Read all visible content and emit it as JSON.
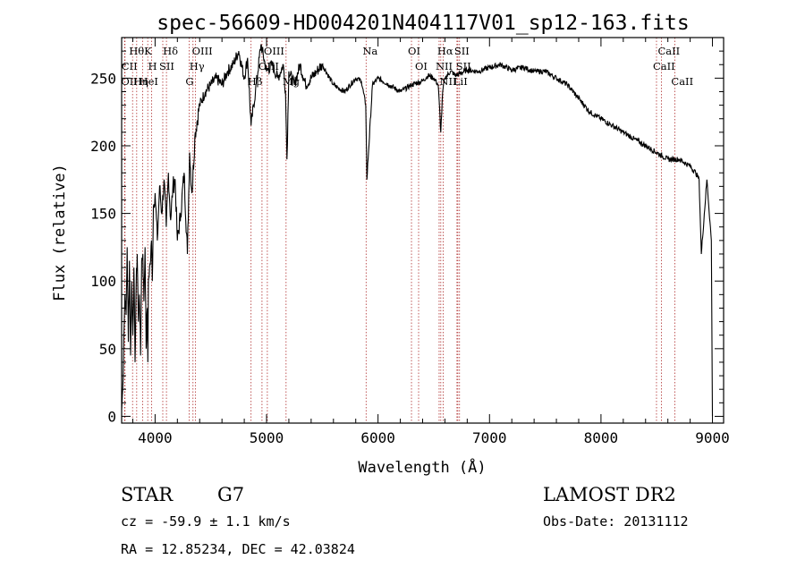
{
  "chart_data": {
    "type": "line",
    "title": "spec-56609-HD004201N404117V01_sp12-163.fits",
    "xlabel": "Wavelength (Å)",
    "ylabel": "Flux (relative)",
    "xlim": [
      3700,
      9100
    ],
    "ylim": [
      -5,
      280
    ],
    "x_ticks": [
      4000,
      5000,
      6000,
      7000,
      8000,
      9000
    ],
    "y_ticks": [
      0,
      50,
      100,
      150,
      200,
      250
    ],
    "grid": false,
    "series": [
      {
        "x": [
          3700,
          3710,
          3720,
          3730,
          3740,
          3750,
          3760,
          3770,
          3780,
          3790,
          3800,
          3810,
          3820,
          3830,
          3840,
          3850,
          3860,
          3870,
          3880,
          3890,
          3900,
          3910,
          3920,
          3930,
          3935,
          3940,
          3950,
          3960,
          3968,
          3975,
          3985,
          4000,
          4020,
          4040,
          4060,
          4080,
          4100,
          4120,
          4140,
          4160,
          4180,
          4200,
          4230,
          4260,
          4290,
          4310,
          4330,
          4360,
          4400,
          4450,
          4500,
          4550,
          4600,
          4650,
          4700,
          4750,
          4800,
          4830,
          4861,
          4900,
          4950,
          5000,
          5050,
          5100,
          5150,
          5170,
          5183,
          5200,
          5250,
          5300,
          5350,
          5400,
          5450,
          5500,
          5600,
          5700,
          5800,
          5850,
          5890,
          5900,
          5950,
          6000,
          6100,
          6200,
          6300,
          6400,
          6450,
          6500,
          6540,
          6563,
          6580,
          6600,
          6650,
          6700,
          6800,
          6900,
          7000,
          7100,
          7200,
          7300,
          7400,
          7500,
          7600,
          7700,
          7800,
          7900,
          8000,
          8100,
          8200,
          8300,
          8400,
          8500,
          8600,
          8700,
          8800,
          8850,
          8880,
          8900,
          8950,
          8990,
          9000
        ],
        "y": [
          5,
          20,
          60,
          90,
          75,
          125,
          55,
          115,
          45,
          100,
          60,
          110,
          40,
          95,
          120,
          70,
          90,
          45,
          115,
          120,
          85,
          125,
          50,
          80,
          40,
          100,
          110,
          115,
          130,
          100,
          155,
          165,
          130,
          170,
          150,
          175,
          140,
          180,
          145,
          170,
          175,
          130,
          150,
          180,
          120,
          195,
          165,
          210,
          230,
          240,
          245,
          250,
          245,
          255,
          260,
          270,
          250,
          265,
          215,
          240,
          275,
          255,
          260,
          250,
          260,
          240,
          190,
          255,
          245,
          260,
          245,
          250,
          255,
          260,
          245,
          240,
          250,
          248,
          230,
          175,
          245,
          250,
          245,
          240,
          245,
          248,
          252,
          250,
          245,
          210,
          240,
          250,
          255,
          252,
          256,
          255,
          258,
          260,
          256,
          258,
          255,
          255,
          250,
          245,
          235,
          225,
          220,
          215,
          210,
          205,
          200,
          195,
          190,
          190,
          185,
          180,
          175,
          120,
          175,
          130,
          0
        ]
      }
    ],
    "spectral_lines": [
      {
        "label": "Hθ",
        "x": 3798
      },
      {
        "label": "CII",
        "x": 3730
      },
      {
        "label": "OII",
        "x": 3727
      },
      {
        "label": "Hη",
        "x": 3835
      },
      {
        "label": "K",
        "x": 3934
      },
      {
        "label": "HeI",
        "x": 3889
      },
      {
        "label": "H",
        "x": 3969
      },
      {
        "label": "Hδ",
        "x": 4102
      },
      {
        "label": "SII",
        "x": 4069
      },
      {
        "label": "OIII",
        "x": 4363
      },
      {
        "label": "Hγ",
        "x": 4340
      },
      {
        "label": "G",
        "x": 4305
      },
      {
        "label": "OIII",
        "x": 5007
      },
      {
        "label": "OIII",
        "x": 4959
      },
      {
        "label": "Hβ",
        "x": 4861
      },
      {
        "label": "Mg",
        "x": 5175
      },
      {
        "label": "Na",
        "x": 5893
      },
      {
        "label": "OI",
        "x": 6300
      },
      {
        "label": "OI",
        "x": 6364
      },
      {
        "label": "Hα",
        "x": 6563
      },
      {
        "label": "SII",
        "x": 6716
      },
      {
        "label": "NII",
        "x": 6548
      },
      {
        "label": "LiI",
        "x": 6708
      },
      {
        "label": "NII",
        "x": 6584
      },
      {
        "label": "SII",
        "x": 6731
      },
      {
        "label": "CaII",
        "x": 8542
      },
      {
        "label": "CaII",
        "x": 8498
      },
      {
        "label": "CaII",
        "x": 8662
      }
    ]
  },
  "info": {
    "object_class": "STAR",
    "subclass": "G7",
    "survey": "LAMOST DR2",
    "cz": "cz = -59.9 ± 1.1 km/s",
    "obs_date": "Obs-Date: 20131112",
    "coords": "RA =  12.85234, DEC =  42.03824"
  }
}
